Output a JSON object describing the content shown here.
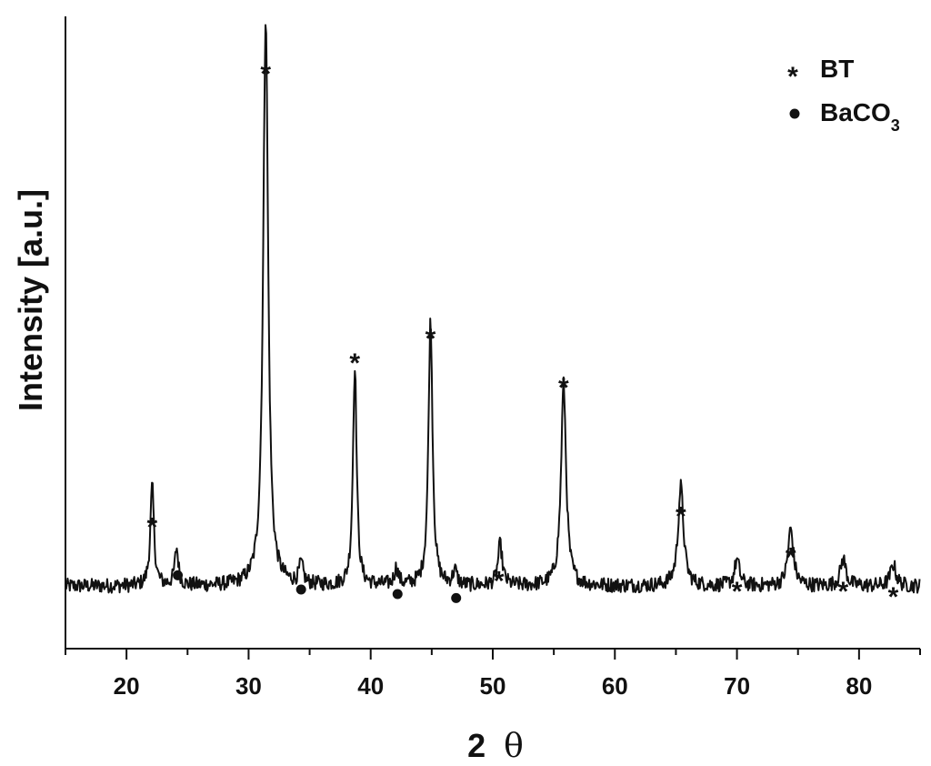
{
  "chart_data": {
    "type": "line",
    "title": "",
    "xlabel": "2 θ",
    "xlabel_parts": {
      "number": "2",
      "symbol": "θ"
    },
    "ylabel": "Intensity [a.u.]",
    "xlim": [
      15,
      85
    ],
    "ylim": [
      0,
      100
    ],
    "x_ticks": [
      20,
      30,
      40,
      50,
      60,
      70,
      80
    ],
    "x_tick_labels": [
      "20",
      "30",
      "40",
      "50",
      "60",
      "70",
      "80"
    ],
    "y_ticks_shown": false,
    "grid": false,
    "legend_position": "top-right",
    "baseline": 11,
    "noise_amplitude": 1.3,
    "line_color": "#111111",
    "peaks": [
      {
        "x": 22.1,
        "height": 17.5,
        "width": 0.18,
        "phase": "BT"
      },
      {
        "x": 24.1,
        "height": 6.5,
        "width": 0.18,
        "phase": "BaCO3"
      },
      {
        "x": 31.4,
        "height": 100.5,
        "width": 0.24,
        "phase": "BT"
      },
      {
        "x": 34.3,
        "height": 3.5,
        "width": 0.2,
        "phase": "BaCO3"
      },
      {
        "x": 38.7,
        "height": 38.8,
        "width": 0.18,
        "phase": "BT"
      },
      {
        "x": 42.1,
        "height": 3.0,
        "width": 0.2,
        "phase": "BaCO3"
      },
      {
        "x": 44.9,
        "height": 46.5,
        "width": 0.2,
        "phase": "BT"
      },
      {
        "x": 46.9,
        "height": 2.5,
        "width": 0.2,
        "phase": "BaCO3"
      },
      {
        "x": 50.6,
        "height": 7.2,
        "width": 0.22,
        "phase": "BT"
      },
      {
        "x": 55.8,
        "height": 35.5,
        "width": 0.25,
        "phase": "BT"
      },
      {
        "x": 65.4,
        "height": 17.5,
        "width": 0.27,
        "phase": "BT"
      },
      {
        "x": 70.0,
        "height": 4.5,
        "width": 0.25,
        "phase": "BT"
      },
      {
        "x": 74.4,
        "height": 10.0,
        "width": 0.27,
        "phase": "BT"
      },
      {
        "x": 78.7,
        "height": 4.8,
        "width": 0.27,
        "phase": "BT"
      },
      {
        "x": 82.8,
        "height": 3.8,
        "width": 0.27,
        "phase": "BT"
      }
    ],
    "markers": [
      {
        "x": 22.1,
        "y": 22.0,
        "phase": "BT"
      },
      {
        "x": 24.2,
        "y": 12.9,
        "phase": "BaCO3"
      },
      {
        "x": 31.4,
        "y": 101.8,
        "phase": "BT"
      },
      {
        "x": 34.3,
        "y": 10.4,
        "phase": "BaCO3"
      },
      {
        "x": 38.7,
        "y": 50.9,
        "phase": "BT"
      },
      {
        "x": 42.2,
        "y": 9.6,
        "phase": "BaCO3"
      },
      {
        "x": 44.9,
        "y": 55.2,
        "phase": "BT"
      },
      {
        "x": 47.0,
        "y": 8.9,
        "phase": "BaCO3"
      },
      {
        "x": 50.5,
        "y": 12.6,
        "phase": "BT"
      },
      {
        "x": 55.8,
        "y": 46.6,
        "phase": "BT"
      },
      {
        "x": 65.4,
        "y": 23.9,
        "phase": "BT"
      },
      {
        "x": 70.0,
        "y": 10.7,
        "phase": "BT"
      },
      {
        "x": 74.4,
        "y": 16.7,
        "phase": "BT"
      },
      {
        "x": 78.7,
        "y": 10.7,
        "phase": "BT"
      },
      {
        "x": 82.8,
        "y": 9.8,
        "phase": "BT"
      }
    ],
    "legend": [
      {
        "symbol": "*",
        "phase": "BT",
        "label": "BT"
      },
      {
        "symbol": "●",
        "phase": "BaCO3",
        "label_main": "BaCO",
        "label_sub": "3"
      }
    ]
  }
}
